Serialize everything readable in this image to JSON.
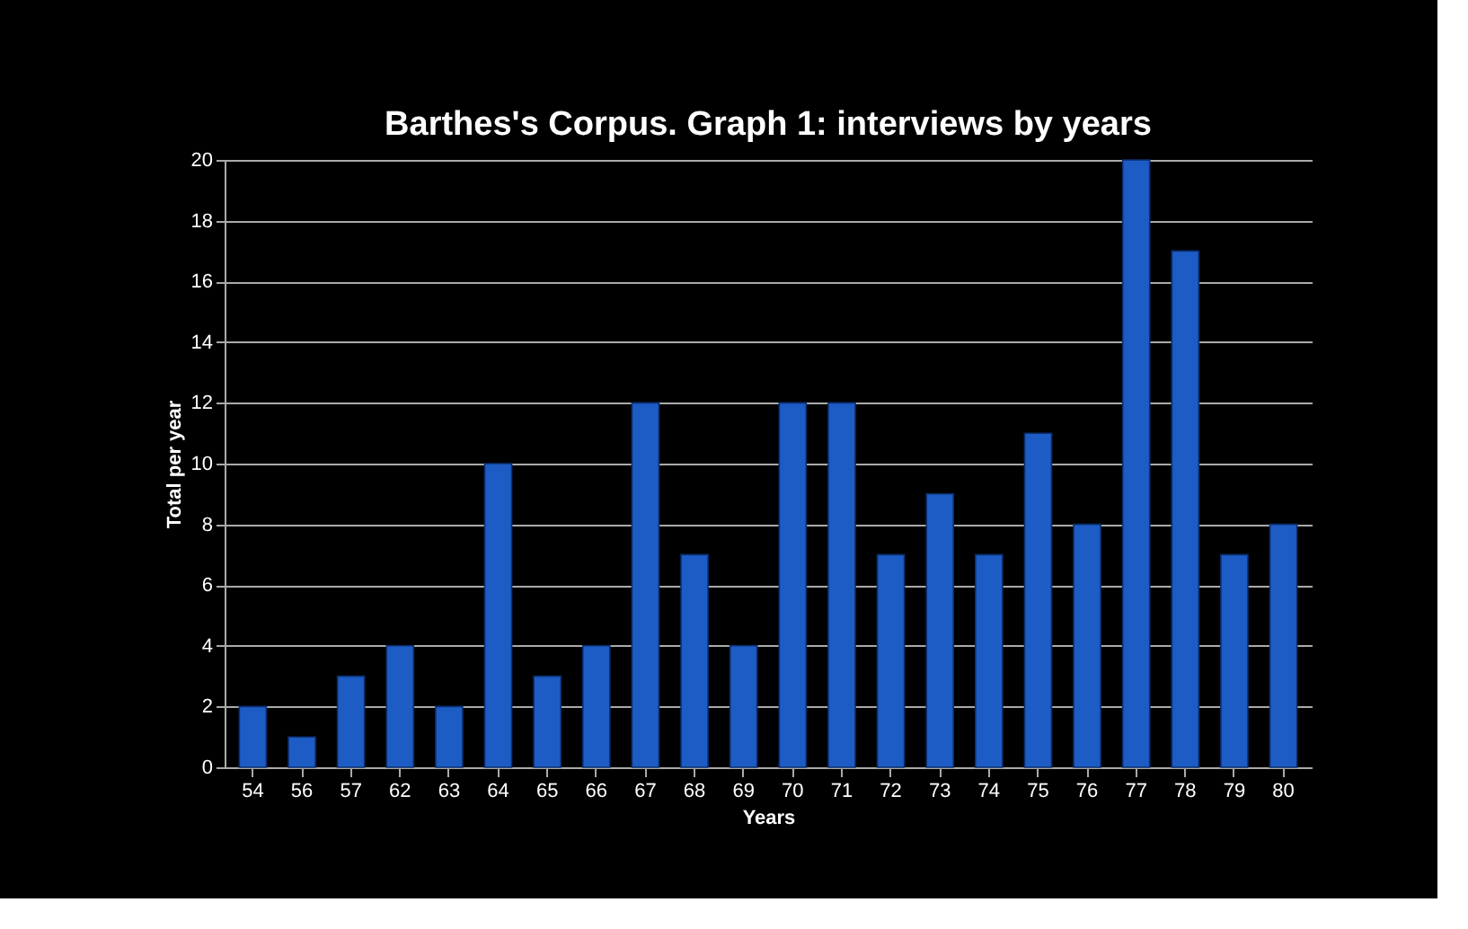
{
  "chart_data": {
    "type": "bar",
    "title": "Barthes's Corpus. Graph 1: interviews by years",
    "xlabel": "Years",
    "ylabel": "Total per year",
    "categories": [
      "54",
      "56",
      "57",
      "62",
      "63",
      "64",
      "65",
      "66",
      "67",
      "68",
      "69",
      "70",
      "71",
      "72",
      "73",
      "74",
      "75",
      "76",
      "77",
      "78",
      "79",
      "80"
    ],
    "values": [
      2,
      1,
      3,
      4,
      2,
      10,
      3,
      4,
      12,
      7,
      4,
      12,
      12,
      7,
      9,
      7,
      11,
      8,
      20,
      17,
      7,
      8
    ],
    "color": "#1d5cc4",
    "ylim": [
      0,
      20
    ],
    "yticks": [
      0,
      2,
      4,
      6,
      8,
      10,
      12,
      14,
      16,
      18,
      20
    ],
    "grid": "y"
  }
}
